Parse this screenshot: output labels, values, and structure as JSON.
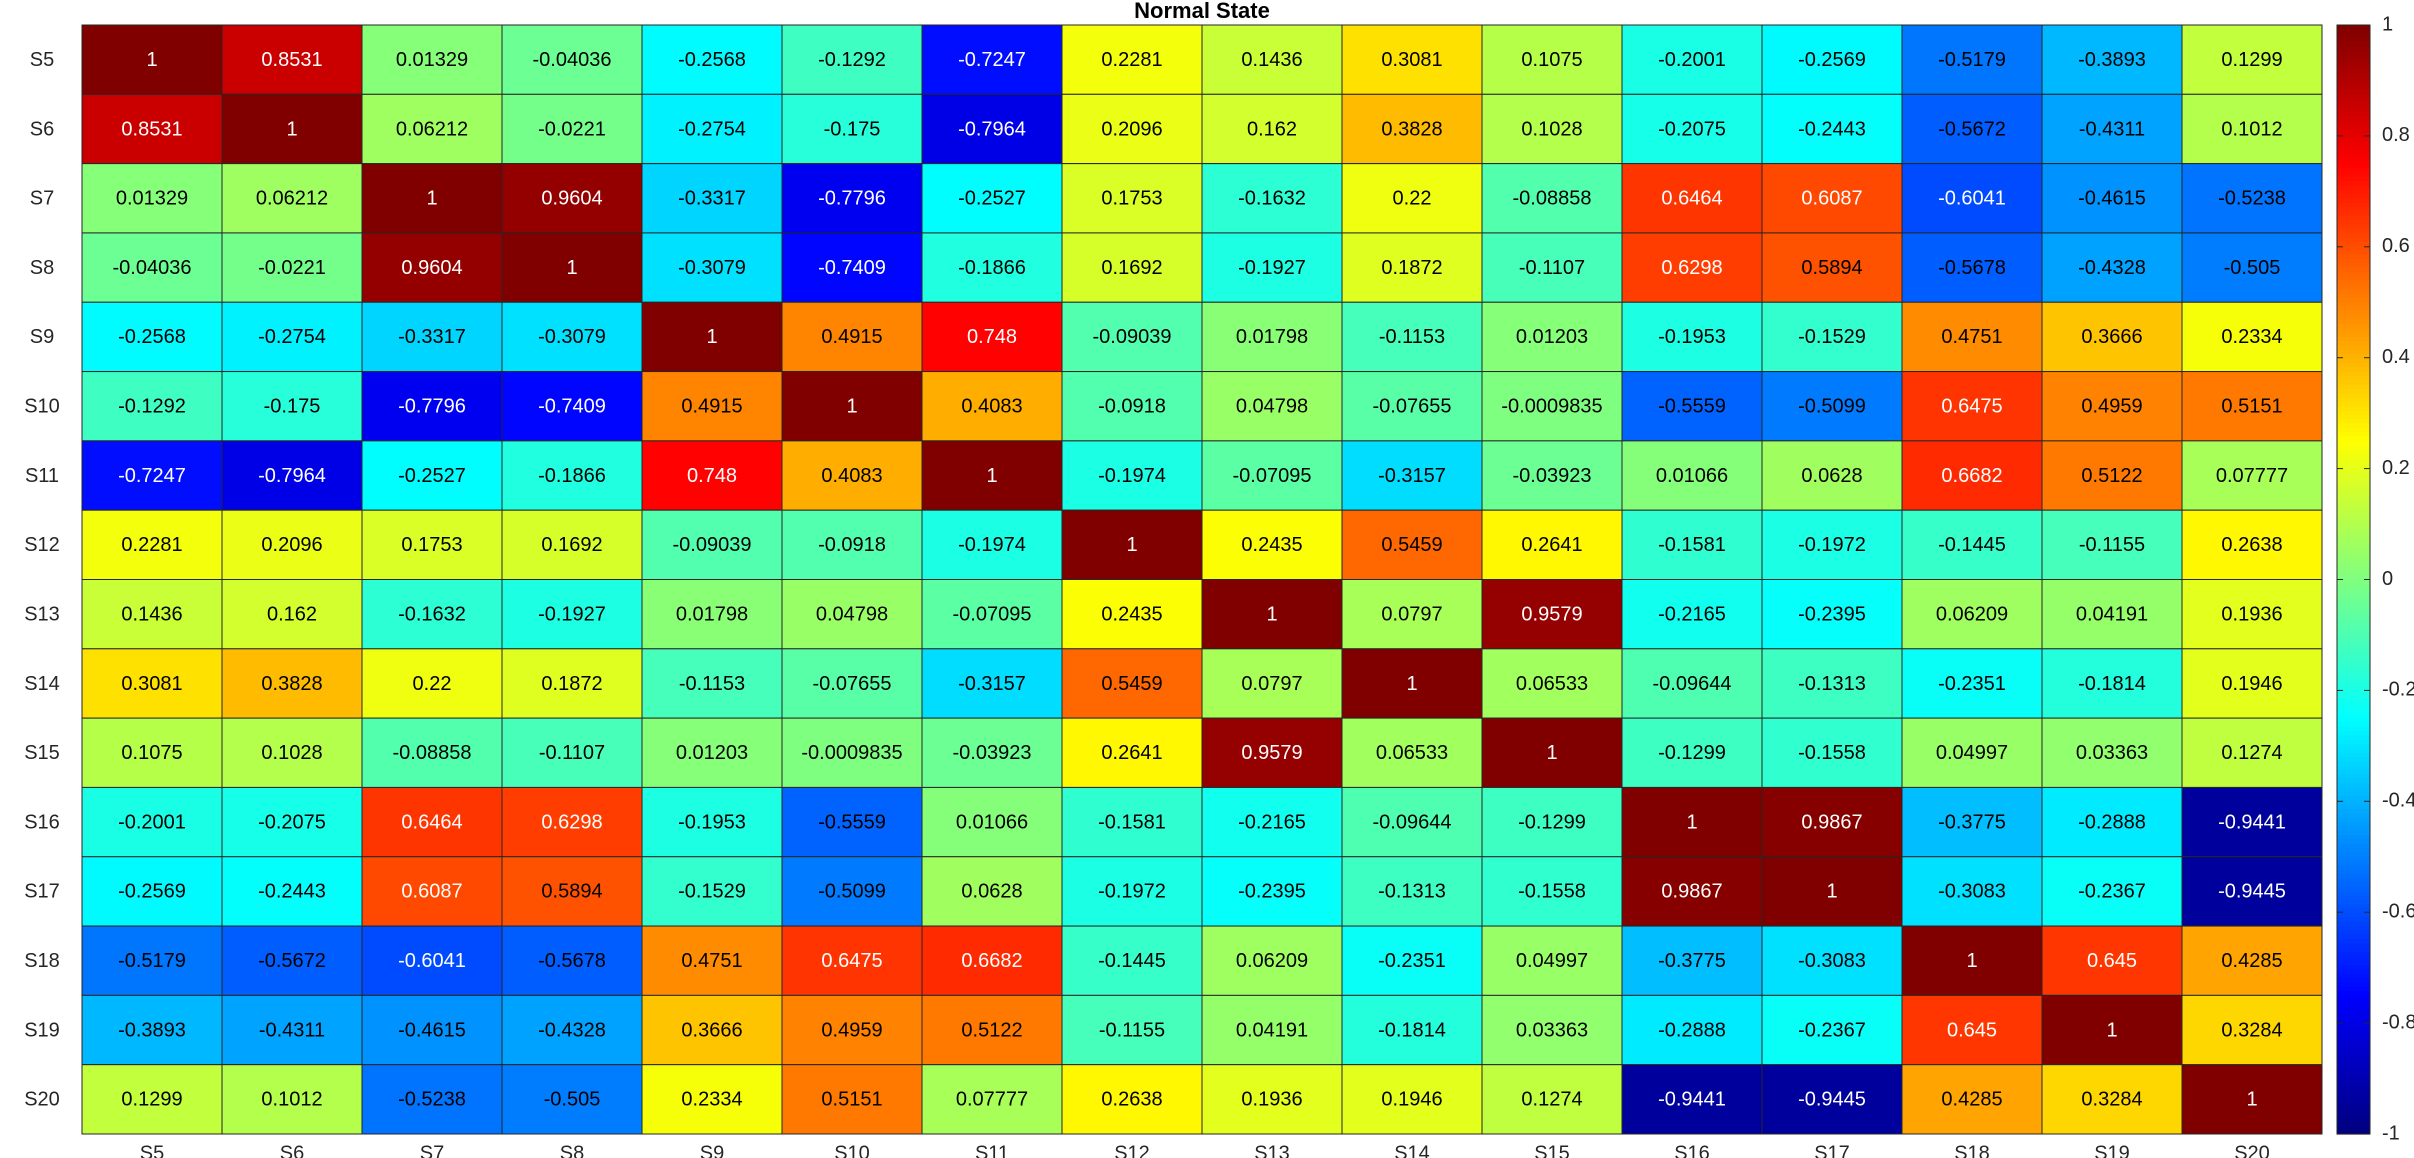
{
  "chart_data": {
    "type": "heatmap",
    "title": "Normal State",
    "x_labels": [
      "S5",
      "S6",
      "S7",
      "S8",
      "S9",
      "S10",
      "S11",
      "S12",
      "S13",
      "S14",
      "S15",
      "S16",
      "S17",
      "S18",
      "S19",
      "S20"
    ],
    "y_labels": [
      "S5",
      "S6",
      "S7",
      "S8",
      "S9",
      "S10",
      "S11",
      "S12",
      "S13",
      "S14",
      "S15",
      "S16",
      "S17",
      "S18",
      "S19",
      "S20"
    ],
    "values": [
      [
        "1",
        "0.8531",
        "0.01329",
        "-0.04036",
        "-0.2568",
        "-0.1292",
        "-0.7247",
        "0.2281",
        "0.1436",
        "0.3081",
        "0.1075",
        "-0.2001",
        "-0.2569",
        "-0.5179",
        "-0.3893",
        "0.1299"
      ],
      [
        "0.8531",
        "1",
        "0.06212",
        "-0.0221",
        "-0.2754",
        "-0.175",
        "-0.7964",
        "0.2096",
        "0.162",
        "0.3828",
        "0.1028",
        "-0.2075",
        "-0.2443",
        "-0.5672",
        "-0.4311",
        "0.1012"
      ],
      [
        "0.01329",
        "0.06212",
        "1",
        "0.9604",
        "-0.3317",
        "-0.7796",
        "-0.2527",
        "0.1753",
        "-0.1632",
        "0.22",
        "-0.08858",
        "0.6464",
        "0.6087",
        "-0.6041",
        "-0.4615",
        "-0.5238"
      ],
      [
        "-0.04036",
        "-0.0221",
        "0.9604",
        "1",
        "-0.3079",
        "-0.7409",
        "-0.1866",
        "0.1692",
        "-0.1927",
        "0.1872",
        "-0.1107",
        "0.6298",
        "0.5894",
        "-0.5678",
        "-0.4328",
        "-0.505"
      ],
      [
        "-0.2568",
        "-0.2754",
        "-0.3317",
        "-0.3079",
        "1",
        "0.4915",
        "0.748",
        "-0.09039",
        "0.01798",
        "-0.1153",
        "0.01203",
        "-0.1953",
        "-0.1529",
        "0.4751",
        "0.3666",
        "0.2334"
      ],
      [
        "-0.1292",
        "-0.175",
        "-0.7796",
        "-0.7409",
        "0.4915",
        "1",
        "0.4083",
        "-0.0918",
        "0.04798",
        "-0.07655",
        "-0.0009835",
        "-0.5559",
        "-0.5099",
        "0.6475",
        "0.4959",
        "0.5151"
      ],
      [
        "-0.7247",
        "-0.7964",
        "-0.2527",
        "-0.1866",
        "0.748",
        "0.4083",
        "1",
        "-0.1974",
        "-0.07095",
        "-0.3157",
        "-0.03923",
        "0.01066",
        "0.0628",
        "0.6682",
        "0.5122",
        "0.07777"
      ],
      [
        "0.2281",
        "0.2096",
        "0.1753",
        "0.1692",
        "-0.09039",
        "-0.0918",
        "-0.1974",
        "1",
        "0.2435",
        "0.5459",
        "0.2641",
        "-0.1581",
        "-0.1972",
        "-0.1445",
        "-0.1155",
        "0.2638"
      ],
      [
        "0.1436",
        "0.162",
        "-0.1632",
        "-0.1927",
        "0.01798",
        "0.04798",
        "-0.07095",
        "0.2435",
        "1",
        "0.0797",
        "0.9579",
        "-0.2165",
        "-0.2395",
        "0.06209",
        "0.04191",
        "0.1936"
      ],
      [
        "0.3081",
        "0.3828",
        "0.22",
        "0.1872",
        "-0.1153",
        "-0.07655",
        "-0.3157",
        "0.5459",
        "0.0797",
        "1",
        "0.06533",
        "-0.09644",
        "-0.1313",
        "-0.2351",
        "-0.1814",
        "0.1946"
      ],
      [
        "0.1075",
        "0.1028",
        "-0.08858",
        "-0.1107",
        "0.01203",
        "-0.0009835",
        "-0.03923",
        "0.2641",
        "0.9579",
        "0.06533",
        "1",
        "-0.1299",
        "-0.1558",
        "0.04997",
        "0.03363",
        "0.1274"
      ],
      [
        "-0.2001",
        "-0.2075",
        "0.6464",
        "0.6298",
        "-0.1953",
        "-0.5559",
        "0.01066",
        "-0.1581",
        "-0.2165",
        "-0.09644",
        "-0.1299",
        "1",
        "0.9867",
        "-0.3775",
        "-0.2888",
        "-0.9441"
      ],
      [
        "-0.2569",
        "-0.2443",
        "0.6087",
        "0.5894",
        "-0.1529",
        "-0.5099",
        "0.0628",
        "-0.1972",
        "-0.2395",
        "-0.1313",
        "-0.1558",
        "0.9867",
        "1",
        "-0.3083",
        "-0.2367",
        "-0.9445"
      ],
      [
        "-0.5179",
        "-0.5672",
        "-0.6041",
        "-0.5678",
        "0.4751",
        "0.6475",
        "0.6682",
        "-0.1445",
        "0.06209",
        "-0.2351",
        "0.04997",
        "-0.3775",
        "-0.3083",
        "1",
        "0.645",
        "0.4285"
      ],
      [
        "-0.3893",
        "-0.4311",
        "-0.4615",
        "-0.4328",
        "0.3666",
        "0.4959",
        "0.5122",
        "-0.1155",
        "0.04191",
        "-0.1814",
        "0.03363",
        "-0.2888",
        "-0.2367",
        "0.645",
        "1",
        "0.3284"
      ],
      [
        "0.1299",
        "0.1012",
        "-0.5238",
        "-0.505",
        "0.2334",
        "0.5151",
        "0.07777",
        "0.2638",
        "0.1936",
        "0.1946",
        "0.1274",
        "-0.9441",
        "-0.9445",
        "0.4285",
        "0.3284",
        "1"
      ]
    ],
    "colormap": "jet",
    "clim": [
      -1,
      1
    ],
    "colorbar_ticks": [
      "-1",
      "-0.8",
      "-0.6",
      "-0.4",
      "-0.2",
      "0",
      "0.2",
      "0.4",
      "0.6",
      "0.8",
      "1"
    ],
    "colorbar_placement": "right",
    "text_color_dark": "#000000",
    "text_color_light": "#ffffff",
    "cell_edge_color": "#262626"
  }
}
